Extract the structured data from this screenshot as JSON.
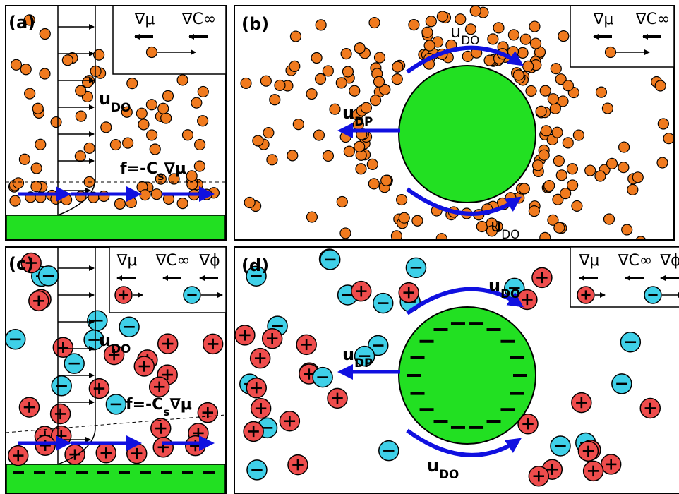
{
  "panels": [
    {
      "label": "(a)",
      "legend": [
        "∇μ",
        "∇C∞"
      ],
      "u_do": "u",
      "u_do_sub": "DO",
      "force": "f=-C",
      "force_sub": "s",
      "force_end": "∇μ"
    },
    {
      "label": "(b)",
      "legend": [
        "∇μ",
        "∇C∞"
      ],
      "u_do": "u",
      "u_do_sub": "DO",
      "u_dp": "u",
      "u_dp_sub": "DP"
    },
    {
      "label": "(c)",
      "legend": [
        "∇μ",
        "∇C∞",
        "∇ϕ"
      ],
      "u_do": "u",
      "u_do_sub": "DO",
      "force": "f=-C",
      "force_sub": "s",
      "force_end": "∇μ"
    },
    {
      "label": "(d)",
      "legend": [
        "∇μ",
        "∇C∞",
        "∇ϕ"
      ],
      "u_do": "u",
      "u_do_sub": "DO",
      "u_dp": "u",
      "u_dp_sub": "DP"
    }
  ]
}
